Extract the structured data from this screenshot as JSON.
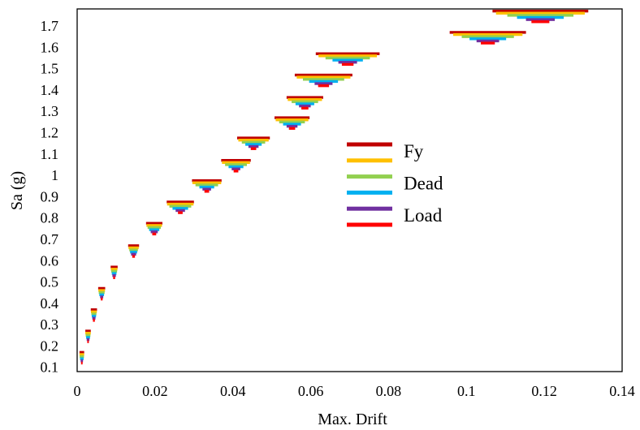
{
  "chart_data": {
    "type": "scatter",
    "title": "",
    "xlabel": "Max. Drift",
    "ylabel": "Sa (g)",
    "xlim": [
      0,
      0.14
    ],
    "ylim": [
      0.08,
      1.78
    ],
    "xticks": [
      "0",
      "0.02",
      "0.04",
      "0.06",
      "0.08",
      "0.1",
      "0.12",
      "0.14"
    ],
    "yticks": [
      "0.1",
      "0.2",
      "0.3",
      "0.4",
      "0.5",
      "0.6",
      "0.7",
      "0.8",
      "0.9",
      "1",
      "1.1",
      "1.2",
      "1.3",
      "1.4",
      "1.5",
      "1.6",
      "1.7"
    ],
    "grid": false,
    "legend_position": "center-right",
    "legend_entries": [
      "Fy",
      "",
      "Dead",
      "",
      "Load",
      ""
    ],
    "legend_texts": [
      "Fy",
      "Dead",
      "Load"
    ],
    "series": [
      {
        "color": "#c00000",
        "offset": 0.0
      },
      {
        "color": "#ffc000",
        "offset": -0.01
      },
      {
        "color": "#92d050",
        "offset": -0.02
      },
      {
        "color": "#00b0f0",
        "offset": -0.03
      },
      {
        "color": "#7030a0",
        "offset": -0.04
      },
      {
        "color": "#ff0000",
        "offset": -0.05
      }
    ],
    "groups": [
      {
        "sa": 0.17,
        "x": 0.0012,
        "w": [
          0.0012,
          0.0012,
          0.0011,
          0.0009,
          0.0006,
          0.0004
        ]
      },
      {
        "sa": 0.27,
        "x": 0.0028,
        "w": [
          0.0014,
          0.0014,
          0.0012,
          0.001,
          0.0007,
          0.0004
        ]
      },
      {
        "sa": 0.37,
        "x": 0.0043,
        "w": [
          0.0016,
          0.0015,
          0.0013,
          0.0011,
          0.0008,
          0.0005
        ]
      },
      {
        "sa": 0.47,
        "x": 0.0063,
        "w": [
          0.0018,
          0.0017,
          0.0015,
          0.0012,
          0.0008,
          0.0005
        ]
      },
      {
        "sa": 0.57,
        "x": 0.0095,
        "w": [
          0.0018,
          0.0017,
          0.0015,
          0.0012,
          0.0009,
          0.0005
        ]
      },
      {
        "sa": 0.67,
        "x": 0.0145,
        "w": [
          0.0028,
          0.0026,
          0.0022,
          0.0018,
          0.0013,
          0.0007
        ]
      },
      {
        "sa": 0.775,
        "x": 0.0198,
        "w": [
          0.0042,
          0.004,
          0.0034,
          0.0026,
          0.0018,
          0.001
        ]
      },
      {
        "sa": 0.875,
        "x": 0.0265,
        "w": [
          0.007,
          0.0068,
          0.0056,
          0.004,
          0.0024,
          0.0012
        ]
      },
      {
        "sa": 0.975,
        "x": 0.0333,
        "w": [
          0.0076,
          0.0074,
          0.0058,
          0.0038,
          0.0022,
          0.0012
        ]
      },
      {
        "sa": 1.07,
        "x": 0.0408,
        "w": [
          0.0076,
          0.0072,
          0.0056,
          0.0038,
          0.0022,
          0.0012
        ]
      },
      {
        "sa": 1.175,
        "x": 0.0453,
        "w": [
          0.0084,
          0.0078,
          0.006,
          0.0042,
          0.0026,
          0.0014
        ]
      },
      {
        "sa": 1.27,
        "x": 0.0552,
        "w": [
          0.009,
          0.0084,
          0.0066,
          0.0046,
          0.0028,
          0.0016
        ]
      },
      {
        "sa": 1.365,
        "x": 0.0585,
        "w": [
          0.0094,
          0.0088,
          0.0068,
          0.0048,
          0.003,
          0.0018
        ]
      },
      {
        "sa": 1.47,
        "x": 0.0633,
        "w": [
          0.0148,
          0.0138,
          0.0106,
          0.0074,
          0.0046,
          0.0028
        ]
      },
      {
        "sa": 1.57,
        "x": 0.0695,
        "w": [
          0.0164,
          0.015,
          0.0114,
          0.0078,
          0.0048,
          0.003
        ]
      },
      {
        "sa": 1.67,
        "x": 0.1055,
        "w": [
          0.0196,
          0.0178,
          0.0134,
          0.0094,
          0.0058,
          0.0036
        ]
      },
      {
        "sa": 1.77,
        "x": 0.119,
        "w": [
          0.0246,
          0.0228,
          0.017,
          0.012,
          0.0074,
          0.0046
        ]
      }
    ]
  }
}
